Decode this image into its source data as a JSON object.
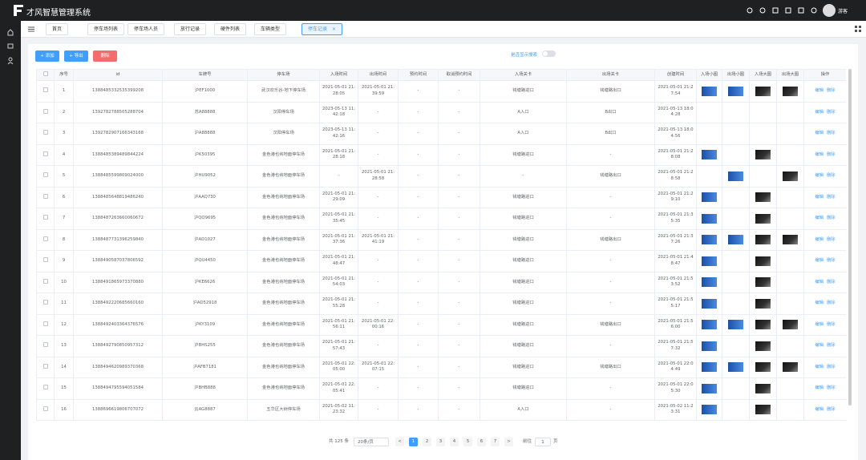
{
  "header": {
    "title": "才风智慧管理系统",
    "user": "游客"
  },
  "tabs": [
    "首页",
    "停车场列表",
    "停车场人员",
    "放行记录",
    "硬件列表",
    "车辆类型",
    "停车记录"
  ],
  "toolbar": {
    "buttons": [
      "+ 添加",
      "+ 导出",
      "删除"
    ],
    "search_toggle": "是否显示搜索"
  },
  "table": {
    "columns": [
      "序号",
      "id",
      "车牌号",
      "停车场",
      "入场时间",
      "出场时间",
      "预约时间",
      "取消预约时间",
      "入场关卡",
      "出场关卡",
      "创建时间",
      "入场小图",
      "出场小图",
      "入场大图",
      "出场大图",
      "操作"
    ],
    "actions": [
      "编辑",
      "删除"
    ],
    "rows": [
      [
        "1",
        "1388485332535399208",
        "沪EF1000",
        "武汉欢乐谷-地下停车场",
        "2021-05-01 21:28:05",
        "2021-05-01 21:39:59",
        "-",
        "-",
        "钱塘路进口",
        "钱塘路出口",
        "2021-05-01 21:27:54"
      ],
      [
        "2",
        "1392782788505288704",
        "苏A88888",
        "汉阳停车场",
        "2023-05-13 11:42:18",
        "-",
        "-",
        "-",
        "A入口",
        "B出口",
        "2021-05-13 18:04:28"
      ],
      [
        "3",
        "1392782907166343168",
        "沪A88888",
        "汉阳停车场",
        "2023-05-13 11:42:16",
        "-",
        "-",
        "-",
        "A入口",
        "B出口",
        "2021-05-13 18:04:56"
      ],
      [
        "4",
        "1388485389489844224",
        "沪K50395",
        "金色港也纳地面停车场",
        "2021-05-01 21:28:18",
        "-",
        "-",
        "-",
        "钱塘路进口",
        "-",
        "2021-05-01 21:28:08"
      ],
      [
        "5",
        "1388485599809024000",
        "沪HU9052",
        "金色港也纳地面停车场",
        "-",
        "2021-05-01 21:28:58",
        "-",
        "-",
        "-",
        "钱塘路出口",
        "2021-05-01 21:28:58"
      ],
      [
        "6",
        "1388485648819486240",
        "沪AAQ730",
        "金色港也纳地面停车场",
        "2021-05-01 21:29:09",
        "-",
        "-",
        "-",
        "钱塘路进口",
        "-",
        "2021-05-01 21:29:10"
      ],
      [
        "7",
        "1388487263660060672",
        "沪QQ9695",
        "金色港也纳地面停车场",
        "2021-05-01 21:35:45",
        "-",
        "-",
        "-",
        "钱塘路进口",
        "-",
        "2021-05-01 21:35:35"
      ],
      [
        "8",
        "1388487731396259840",
        "沪AD1027",
        "金色港也纳地面停车场",
        "2021-05-01 21:37:36",
        "2021-05-01 21:41:19",
        "-",
        "-",
        "钱塘路进口",
        "钱塘路出口",
        "2021-05-01 21:37:26"
      ],
      [
        "9",
        "1388490587037806592",
        "沪QU4450",
        "金色港也纳地面停车场",
        "2021-05-01 21:48:47",
        "-",
        "-",
        "-",
        "钱塘路进口",
        "-",
        "2021-05-01 21:48:47"
      ],
      [
        "10",
        "1388491865973370880",
        "沪KE6626",
        "金色港也纳地面停车场",
        "2021-05-01 21:54:03",
        "-",
        "-",
        "-",
        "钱塘路进口",
        "-",
        "2021-05-01 21:53:52"
      ],
      [
        "11",
        "1388492220685660160",
        "沪AD52918",
        "金色港也纳地面停车场",
        "2021-05-01 21:55:28",
        "-",
        "-",
        "-",
        "钱塘路进口",
        "-",
        "2021-05-01 21:55:17"
      ],
      [
        "12",
        "1388492403364376576",
        "沪KY3109",
        "金色港也纳地面停车场",
        "2021-05-01 21:56:11",
        "2021-05-01 22:00:16",
        "-",
        "-",
        "钱塘路进口",
        "钱塘路出口",
        "2021-05-01 21:56:00"
      ],
      [
        "13",
        "1388492790850957312",
        "沪BHS255",
        "金色港也纳地面停车场",
        "2021-05-01 21:57:43",
        "-",
        "-",
        "-",
        "钱塘路进口",
        "-",
        "2021-05-01 21:57:32"
      ],
      [
        "14",
        "1388494620989370368",
        "沪AFB7181",
        "金色港也纳地面停车场",
        "2021-05-01 22:05:00",
        "2021-05-01 22:07:15",
        "-",
        "-",
        "钱塘路进口",
        "钱塘路出口",
        "2021-05-01 22:04:49"
      ],
      [
        "15",
        "1388494795594051584",
        "沪BHB888",
        "金色港也纳地面停车场",
        "2021-05-01 22:05:41",
        "-",
        "-",
        "-",
        "钱塘路进口",
        "-",
        "2021-05-01 22:05:30"
      ],
      [
        "16",
        "1388696619806707072",
        "云AG8887",
        "五华区大树停车场",
        "2021-05-02 11:23:32",
        "-",
        "-",
        "-",
        "A入口",
        "-",
        "2021-05-02 11:23:31"
      ]
    ],
    "images": [
      [
        true,
        true,
        true,
        true
      ],
      [
        false,
        false,
        false,
        false
      ],
      [
        false,
        false,
        false,
        false
      ],
      [
        true,
        false,
        true,
        false
      ],
      [
        false,
        true,
        false,
        true
      ],
      [
        true,
        false,
        true,
        false
      ],
      [
        true,
        false,
        true,
        false
      ],
      [
        true,
        true,
        true,
        true
      ],
      [
        true,
        false,
        true,
        false
      ],
      [
        true,
        false,
        true,
        false
      ],
      [
        true,
        false,
        true,
        false
      ],
      [
        true,
        true,
        true,
        true
      ],
      [
        true,
        false,
        true,
        false
      ],
      [
        true,
        true,
        true,
        true
      ],
      [
        true,
        false,
        true,
        false
      ],
      [
        true,
        false,
        true,
        false
      ]
    ]
  },
  "pagination": {
    "total": "共 125 条",
    "page_size": "20条/页",
    "pages": [
      "1",
      "2",
      "3",
      "4",
      "5",
      "6",
      "7"
    ],
    "goto": "前往",
    "goto_value": "1",
    "page_unit": "页"
  }
}
